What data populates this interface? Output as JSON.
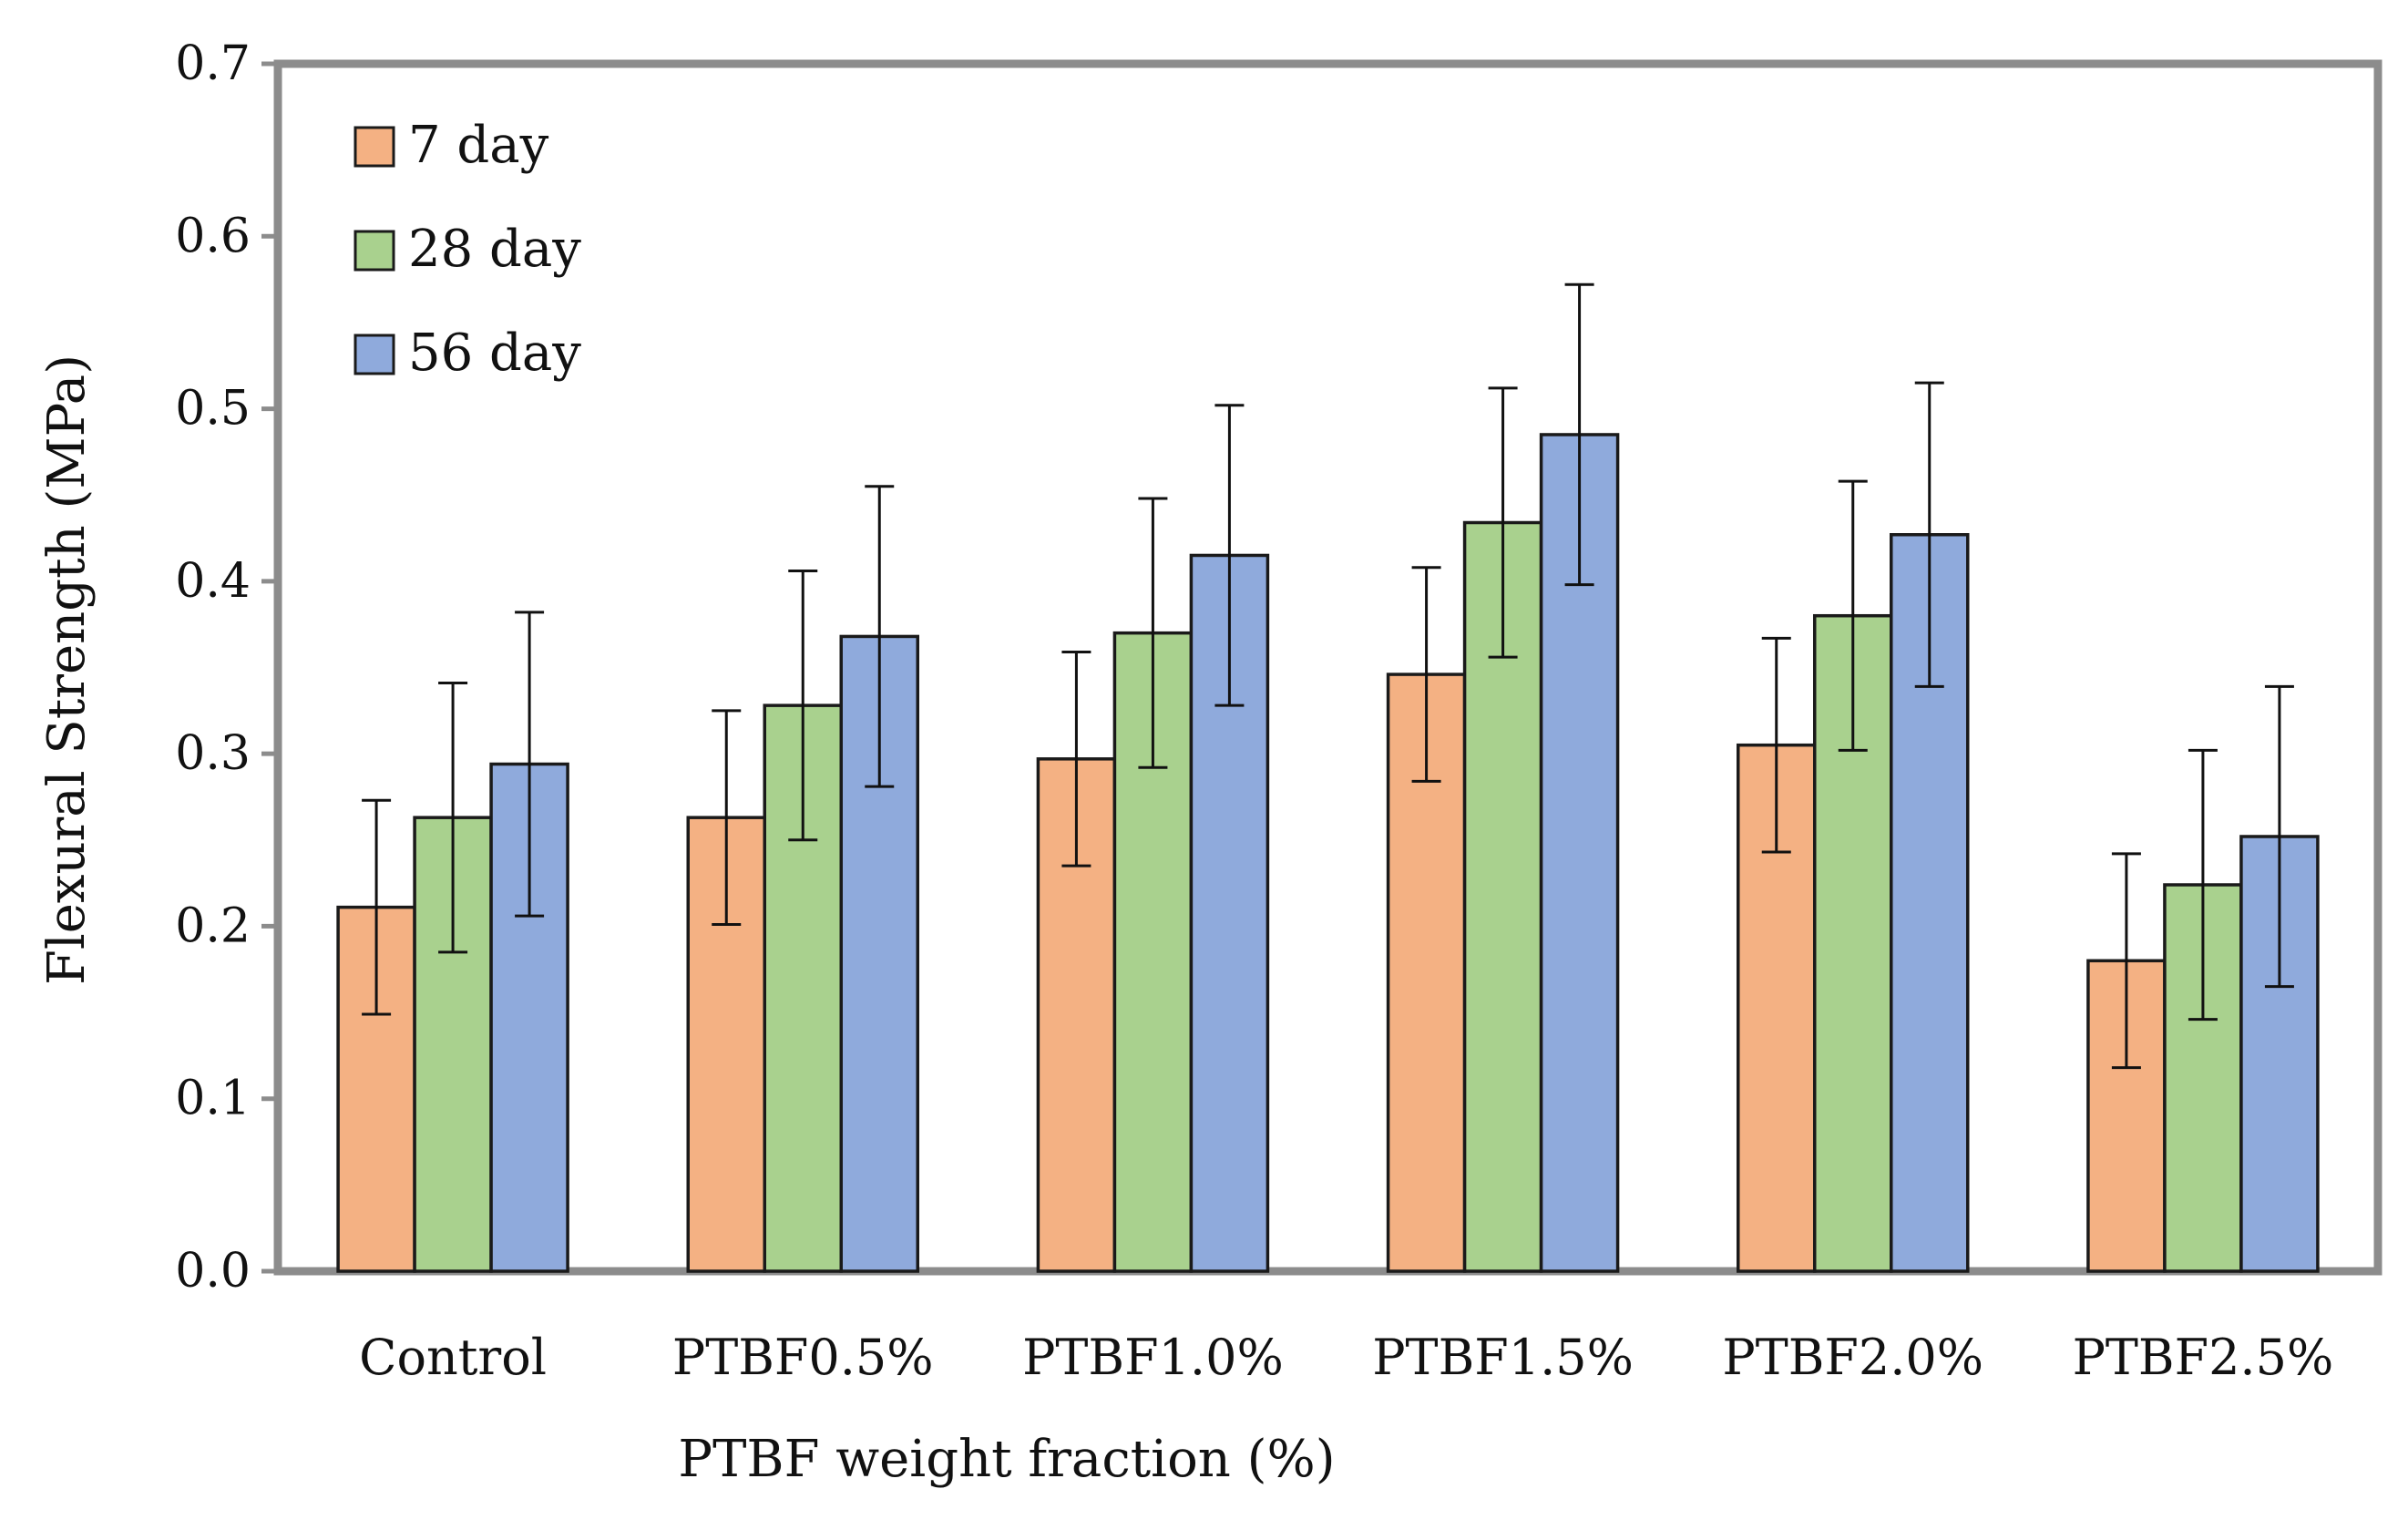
{
  "chart_data": {
    "type": "bar",
    "title": "",
    "xlabel": "PTBF weight fraction (%)",
    "ylabel": "Flexural Strength (MPa)",
    "ylim": [
      0,
      0.7
    ],
    "yticks": [
      0,
      0.1,
      0.2,
      0.3,
      0.4,
      0.5,
      0.6,
      0.7
    ],
    "ytick_labels": [
      "0.0",
      "0.1",
      "0.2",
      "0.3",
      "0.4",
      "0.5",
      "0.6",
      "0.7"
    ],
    "categories": [
      "Control",
      "PTBF0.5%",
      "PTBF1.0%",
      "PTBF1.5%",
      "PTBF2.0%",
      "PTBF2.5%"
    ],
    "legend_position": "top-left",
    "grid": false,
    "series": [
      {
        "name": "7 day",
        "color": "#f4b183",
        "values": [
          0.211,
          0.263,
          0.297,
          0.346,
          0.305,
          0.18
        ],
        "error": [
          0.062,
          0.062,
          0.062,
          0.062,
          0.062,
          0.062
        ]
      },
      {
        "name": "28 day",
        "color": "#a9d18e",
        "values": [
          0.263,
          0.328,
          0.37,
          0.434,
          0.38,
          0.224
        ],
        "error": [
          0.078,
          0.078,
          0.078,
          0.078,
          0.078,
          0.078
        ]
      },
      {
        "name": "56 day",
        "color": "#8faadc",
        "values": [
          0.294,
          0.368,
          0.415,
          0.485,
          0.427,
          0.252
        ],
        "error": [
          0.088,
          0.087,
          0.087,
          0.087,
          0.088,
          0.087
        ]
      }
    ]
  }
}
